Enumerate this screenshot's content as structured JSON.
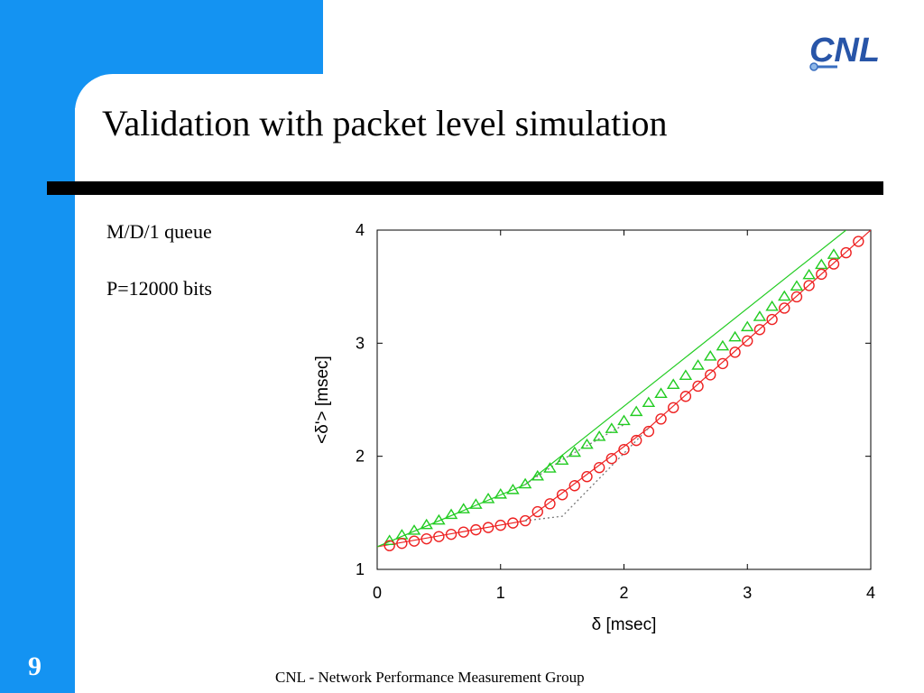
{
  "slide": {
    "title": "Validation with packet level simulation",
    "bullets": [
      "M/D/1 queue",
      "P=12000 bits"
    ],
    "page_number": "9",
    "footer": "CNL - Network Performance Measurement Group",
    "logo_text": "CNL",
    "colors": {
      "frame_blue": "#1493f2",
      "rule": "#000000"
    }
  },
  "chart_data": {
    "type": "line",
    "xlabel": "δ [msec]",
    "ylabel": "<δ'> [msec]",
    "xlim": [
      0,
      4
    ],
    "ylim": [
      1,
      4
    ],
    "xticks": [
      0,
      1,
      2,
      3,
      4
    ],
    "yticks": [
      1,
      2,
      3,
      4
    ],
    "series": [
      {
        "marker": "triangle",
        "color": "#22cc22",
        "x": [
          0.1,
          0.2,
          0.3,
          0.4,
          0.5,
          0.6,
          0.7,
          0.8,
          0.9,
          1.0,
          1.1,
          1.2,
          1.3,
          1.4,
          1.5,
          1.6,
          1.7,
          1.8,
          1.9,
          2.0,
          2.1,
          2.2,
          2.3,
          2.4,
          2.5,
          2.6,
          2.7,
          2.8,
          2.9,
          3.0,
          3.1,
          3.2,
          3.3,
          3.4,
          3.5,
          3.6,
          3.7
        ],
        "y": [
          1.25,
          1.3,
          1.34,
          1.39,
          1.43,
          1.48,
          1.53,
          1.57,
          1.62,
          1.66,
          1.7,
          1.75,
          1.82,
          1.89,
          1.96,
          2.03,
          2.1,
          2.17,
          2.24,
          2.31,
          2.39,
          2.47,
          2.55,
          2.63,
          2.71,
          2.8,
          2.88,
          2.97,
          3.05,
          3.14,
          3.23,
          3.32,
          3.41,
          3.5,
          3.6,
          3.69,
          3.78
        ]
      },
      {
        "marker": "circle",
        "color": "#ee2222",
        "x": [
          0.1,
          0.2,
          0.3,
          0.4,
          0.5,
          0.6,
          0.7,
          0.8,
          0.9,
          1.0,
          1.1,
          1.2,
          1.3,
          1.4,
          1.5,
          1.6,
          1.7,
          1.8,
          1.9,
          2.0,
          2.1,
          2.2,
          2.3,
          2.4,
          2.5,
          2.6,
          2.7,
          2.8,
          2.9,
          3.0,
          3.1,
          3.2,
          3.3,
          3.4,
          3.5,
          3.6,
          3.7,
          3.8,
          3.9
        ],
        "y": [
          1.21,
          1.23,
          1.25,
          1.27,
          1.29,
          1.31,
          1.33,
          1.35,
          1.37,
          1.39,
          1.41,
          1.43,
          1.51,
          1.58,
          1.66,
          1.74,
          1.82,
          1.9,
          1.98,
          2.06,
          2.14,
          2.22,
          2.33,
          2.43,
          2.53,
          2.62,
          2.72,
          2.82,
          2.92,
          3.02,
          3.12,
          3.21,
          3.31,
          3.41,
          3.51,
          3.61,
          3.7,
          3.8,
          3.9
        ]
      }
    ],
    "lines": [
      {
        "style": "solid",
        "color": "#ee2222",
        "x": [
          0,
          1.2,
          2.2,
          4.0
        ],
        "y": [
          1.2,
          1.43,
          2.25,
          4.0
        ]
      },
      {
        "style": "solid",
        "color": "#22cc22",
        "x": [
          0,
          1.2,
          3.8
        ],
        "y": [
          1.2,
          1.75,
          4.0
        ]
      },
      {
        "style": "dotted",
        "color": "#777777",
        "x": [
          1.2,
          1.5,
          2.0
        ],
        "y": [
          1.75,
          1.97,
          2.28
        ]
      },
      {
        "style": "dotted",
        "color": "#777777",
        "x": [
          1.2,
          1.5,
          2.2
        ],
        "y": [
          1.43,
          1.47,
          2.25
        ]
      }
    ]
  }
}
